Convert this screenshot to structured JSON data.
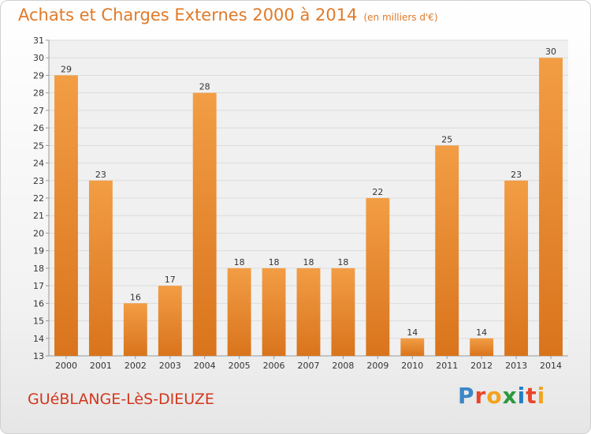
{
  "chart_data": {
    "type": "bar",
    "title": "Achats et Charges Externes 2000 à 2014",
    "unit_note": "(en milliers d'€)",
    "categories": [
      "2000",
      "2001",
      "2002",
      "2003",
      "2004",
      "2005",
      "2006",
      "2007",
      "2008",
      "2009",
      "2010",
      "2011",
      "2012",
      "2013",
      "2014"
    ],
    "values": [
      29,
      23,
      16,
      17,
      28,
      18,
      18,
      18,
      18,
      22,
      14,
      25,
      14,
      23,
      30
    ],
    "ylim": [
      13,
      31
    ],
    "yticks": [
      13,
      14,
      15,
      16,
      17,
      18,
      19,
      20,
      21,
      22,
      23,
      24,
      25,
      26,
      27,
      28,
      29,
      30,
      31
    ],
    "grid": true,
    "bar_color": "#f29d45",
    "bar_color_dark": "#d9741c"
  },
  "footer": {
    "place": "GUéBLANGE-LèS-DIEUZE",
    "brand_letters": [
      "P",
      "r",
      "o",
      "x",
      "i",
      "t",
      "i"
    ],
    "brand_colors": [
      "#3a86c8",
      "#e8462b",
      "#f2a41c",
      "#2a9a3c",
      "#1f7fc4",
      "#e8462b",
      "#f2a41c"
    ]
  }
}
